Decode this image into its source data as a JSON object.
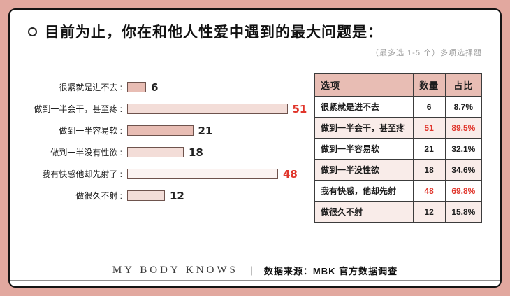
{
  "colors": {
    "frame_pink": "#e2a89f",
    "accent_red": "#e0352b",
    "table_header_pink": "#e8bdb4",
    "row_alt_pink": "#f9ece9"
  },
  "header": {
    "title": "目前为止，你在和他人性爱中遇到的最大问题是：",
    "subtitle": "（最多选 1-5 个）多项选择题"
  },
  "chart_data": {
    "type": "bar",
    "orientation": "horizontal",
    "categories": [
      "很紧就是进不去 :",
      "做到一半会干，甚至疼 :",
      "做到一半容易软 :",
      "做到一半没有性欲 :",
      "我有快感他却先射了 :",
      "做很久不射 :"
    ],
    "values": [
      6,
      51,
      21,
      18,
      48,
      12
    ],
    "highlight": [
      false,
      true,
      false,
      false,
      true,
      false
    ],
    "bar_colors": [
      "#e8bdb4",
      "#f3ddd8",
      "#e8bdb4",
      "#f3ddd8",
      "#fbf3f1",
      "#f3ddd8"
    ],
    "xlim": [
      0,
      55
    ],
    "grid": false,
    "legend": "none"
  },
  "table": {
    "headers": [
      "选项",
      "数量",
      "占比"
    ],
    "rows": [
      {
        "label": "很紧就是进不去",
        "count": "6",
        "pct": "8.7%",
        "highlight": false
      },
      {
        "label": "做到一半会干，甚至疼",
        "count": "51",
        "pct": "89.5%",
        "highlight": true
      },
      {
        "label": "做到一半容易软",
        "count": "21",
        "pct": "32.1%",
        "highlight": false
      },
      {
        "label": "做到一半没性欲",
        "count": "18",
        "pct": "34.6%",
        "highlight": false
      },
      {
        "label": "我有快感，他却先射",
        "count": "48",
        "pct": "69.8%",
        "highlight": true
      },
      {
        "label": "做很久不射",
        "count": "12",
        "pct": "15.8%",
        "highlight": false
      }
    ]
  },
  "footer": {
    "brand": "MY BODY KNOWS",
    "separator": "｜",
    "source": "数据来源：MBK 官方数据调查"
  }
}
